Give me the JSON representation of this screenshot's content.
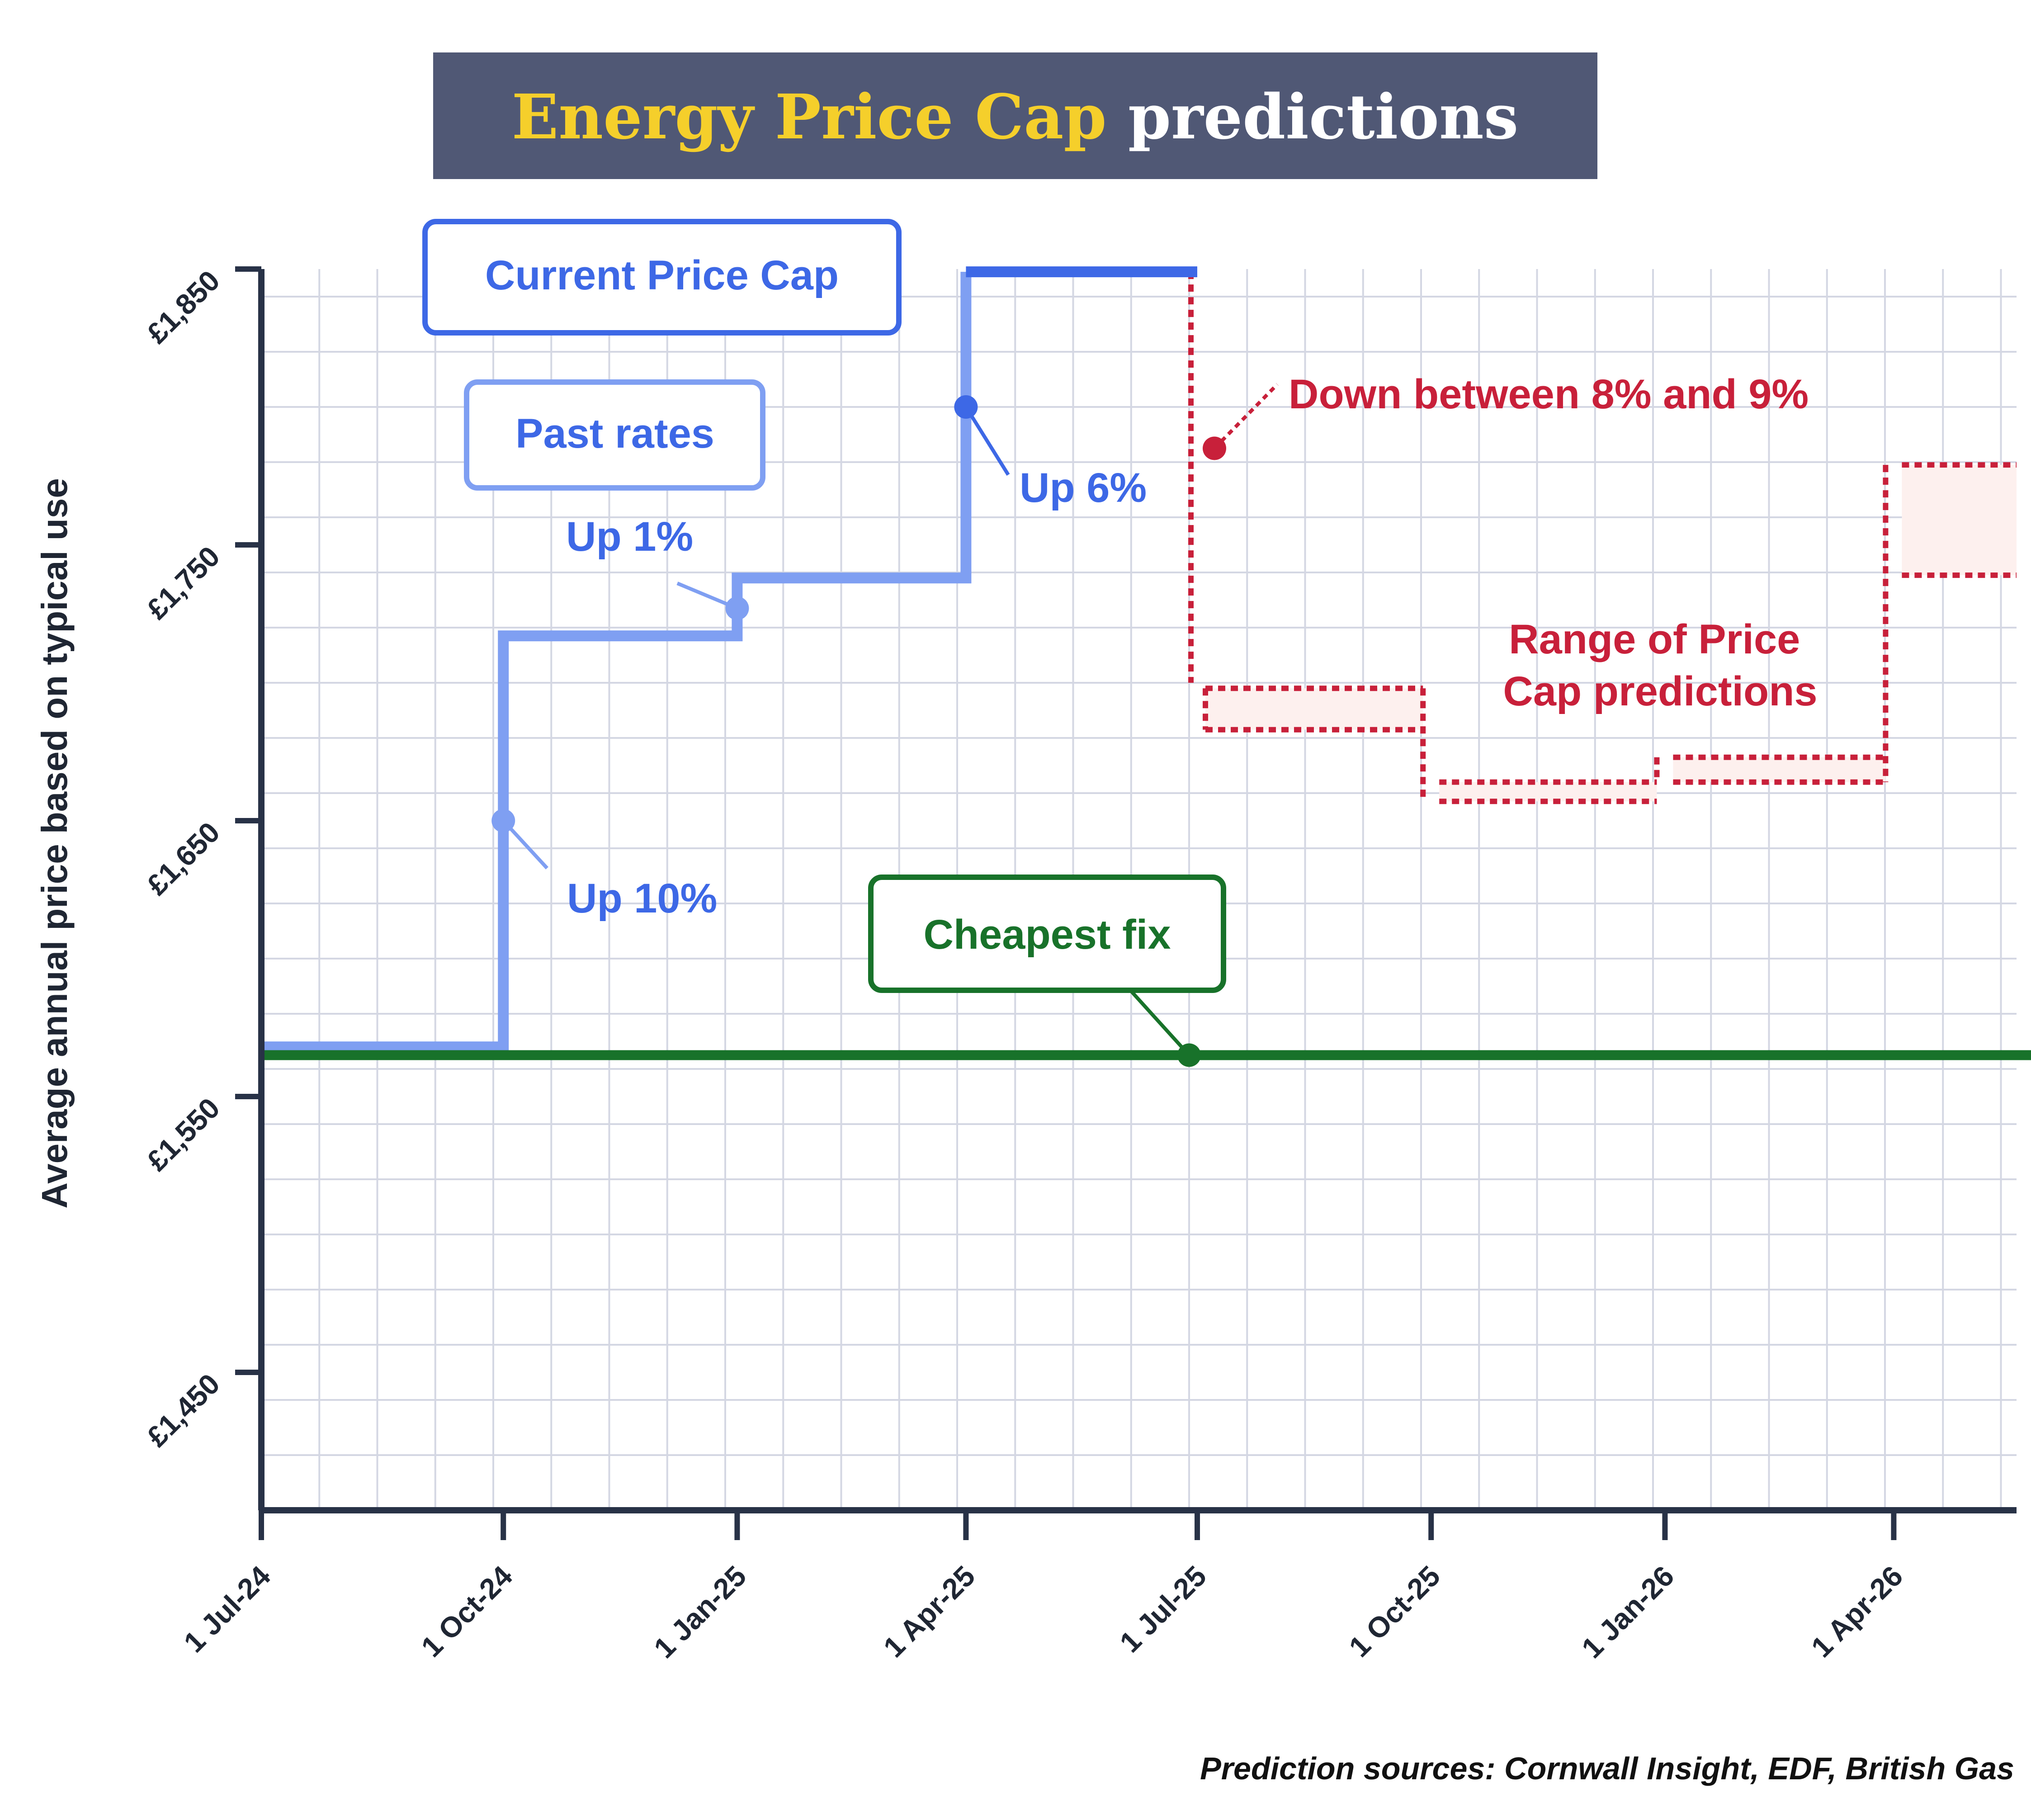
{
  "title": {
    "part1": "Energy Price Cap",
    "part2": " predictions",
    "part1_color": "#f5cf2b",
    "part2_color": "#ffffff",
    "banner_color": "#505875"
  },
  "source_note": "Prediction sources: Cornwall Insight, EDF, British Gas",
  "colors": {
    "past": "#7f9ff2",
    "current": "#3d68e6",
    "prediction": "#c8203a",
    "prediction_fill": "#fdf0ee",
    "fix": "#18722a",
    "axis": "#283247",
    "grid": "#d4d7e3"
  },
  "chart_data": {
    "type": "line",
    "ylabel": "Average annual price based on typical use",
    "xlabel": "",
    "ylim": [
      1400,
      1850
    ],
    "x_ticks": [
      "1 Jul-24",
      "1 Oct-24",
      "1 Jan-25",
      "1 Apr-25",
      "1 Jul-25",
      "1 Oct-25",
      "1 Jan-26",
      "1 Apr-26"
    ],
    "y_ticks": [
      {
        "value": 1450,
        "label": "£1,450"
      },
      {
        "value": 1550,
        "label": "£1,550"
      },
      {
        "value": 1650,
        "label": "£1,650"
      },
      {
        "value": 1750,
        "label": "£1,750"
      },
      {
        "value": 1850,
        "label": "£1,850"
      }
    ],
    "series": [
      {
        "name": "Past rates",
        "style": "step",
        "points": [
          {
            "x": "2024-07-01",
            "y": 1568
          },
          {
            "x": "2024-10-01",
            "y": 1568
          },
          {
            "x": "2024-10-01",
            "y": 1717
          },
          {
            "x": "2025-01-01",
            "y": 1717
          },
          {
            "x": "2025-01-01",
            "y": 1738
          },
          {
            "x": "2025-04-01",
            "y": 1738
          },
          {
            "x": "2025-04-01",
            "y": 1849
          }
        ]
      },
      {
        "name": "Current Price Cap",
        "style": "step",
        "points": [
          {
            "x": "2025-04-01",
            "y": 1849
          },
          {
            "x": "2025-07-01",
            "y": 1849
          }
        ]
      },
      {
        "name": "Cheapest fix",
        "style": "flat",
        "points": [
          {
            "x": "2024-07-01",
            "y": 1565
          },
          {
            "x": "2026-06-15",
            "y": 1565
          }
        ]
      }
    ],
    "prediction_ranges": [
      {
        "start": "2025-07-01",
        "end": "2025-10-01",
        "low": 1683,
        "high": 1698
      },
      {
        "start": "2025-10-01",
        "end": "2026-01-01",
        "low": 1657,
        "high": 1664
      },
      {
        "start": "2026-01-01",
        "end": "2026-04-01",
        "low": 1664,
        "high": 1673
      },
      {
        "start": "2026-04-01",
        "end": "2026-06-15",
        "low": 1739,
        "high": 1779
      }
    ],
    "annotations": [
      {
        "text": "Up 10%",
        "x": "2024-10-01",
        "y": 1650
      },
      {
        "text": "Up 1%",
        "x": "2025-01-01",
        "y": 1727
      },
      {
        "text": "Up 6%",
        "x": "2025-04-01",
        "y": 1800
      },
      {
        "text": "Down between 8% and 9%",
        "x": "2025-07-01",
        "y": 1785
      },
      {
        "text": "Cheapest fix",
        "x": "2025-07-01",
        "y": 1565
      }
    ],
    "legend_labels": {
      "current": "Current Price Cap",
      "past": "Past rates",
      "range_line1": "Range of Price",
      "range_line2": "Cap predictions"
    },
    "grid": true
  }
}
